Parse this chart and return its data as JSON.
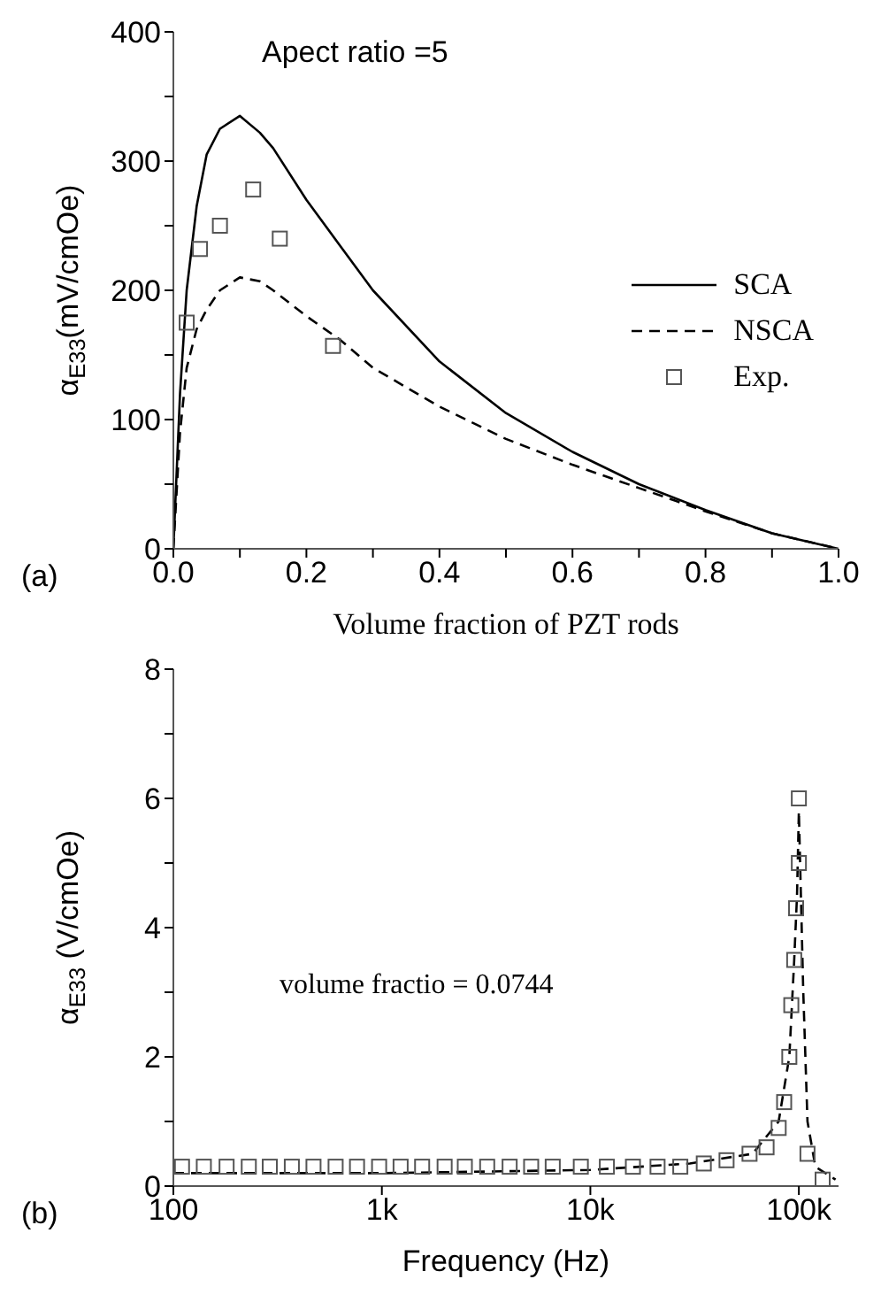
{
  "chart_data": [
    {
      "type": "line",
      "xlabel": "Volume fraction of PZT rods",
      "ylabel": "α$_{E33}$(mV/cmOe)",
      "annotations": [
        "(a)",
        "Apect ratio =5"
      ],
      "xlim": [
        0,
        1
      ],
      "ylim": [
        0,
        400
      ],
      "xticks": [
        {
          "value": 0,
          "label": "0.0"
        },
        {
          "value": 0.1,
          "label": null
        },
        {
          "value": 0.2,
          "label": "0.2"
        },
        {
          "value": 0.3,
          "label": null
        },
        {
          "value": 0.4,
          "label": "0.4"
        },
        {
          "value": 0.5,
          "label": null
        },
        {
          "value": 0.6,
          "label": "0.6"
        },
        {
          "value": 0.7,
          "label": null
        },
        {
          "value": 0.8,
          "label": "0.8"
        },
        {
          "value": 0.9,
          "label": null
        },
        {
          "value": 1,
          "label": "1.0"
        }
      ],
      "yticks": [
        0,
        {
          "value": 50,
          "label": null
        },
        100,
        {
          "value": 150,
          "label": null
        },
        200,
        {
          "value": 250,
          "label": null
        },
        300,
        {
          "value": 350,
          "label": null
        },
        400
      ],
      "legend": "right",
      "series": [
        {
          "name": "SCA",
          "color": "#000000",
          "line_style": "solid",
          "marker": "none",
          "x": [
            0,
            0.01,
            0.02,
            0.035,
            0.05,
            0.07,
            0.1,
            0.13,
            0.15,
            0.2,
            0.25,
            0.3,
            0.4,
            0.5,
            0.6,
            0.7,
            0.8,
            0.9,
            1.0
          ],
          "values": [
            0,
            120,
            200,
            265,
            305,
            325,
            335,
            322,
            310,
            270,
            235,
            200,
            145,
            105,
            75,
            50,
            30,
            12,
            0
          ]
        },
        {
          "name": "NSCA",
          "color": "#000000",
          "line_style": "dashed",
          "marker": "none",
          "x": [
            0,
            0.01,
            0.02,
            0.035,
            0.05,
            0.07,
            0.1,
            0.13,
            0.15,
            0.2,
            0.25,
            0.3,
            0.4,
            0.5,
            0.6,
            0.7,
            0.8,
            0.9,
            1.0
          ],
          "values": [
            0,
            90,
            140,
            170,
            185,
            200,
            210,
            207,
            200,
            180,
            162,
            140,
            110,
            85,
            65,
            47,
            29,
            12,
            0
          ]
        },
        {
          "name": "Exp.",
          "type": "scatter",
          "color": "#555555",
          "marker": "square",
          "x": [
            0.02,
            0.04,
            0.07,
            0.12,
            0.16,
            0.24
          ],
          "values": [
            175,
            232,
            250,
            278,
            240,
            157
          ]
        }
      ]
    },
    {
      "type": "line",
      "xlabel": "Frequency  (Hz)",
      "ylabel": "α$_{E33}$  (V/cmOe)",
      "annotations": [
        "(b)",
        "volume fractio = 0.0744"
      ],
      "log": "x",
      "xlim": [
        100,
        155000
      ],
      "ylim": [
        0,
        8
      ],
      "xticks": [
        100,
        {
          "value": 1000,
          "label": "1k"
        },
        {
          "value": 10000,
          "label": "10k"
        },
        {
          "value": 100000,
          "label": "100k"
        }
      ],
      "yticks": [
        0,
        {
          "value": 1,
          "label": null
        },
        2,
        {
          "value": 3,
          "label": null
        },
        4,
        {
          "value": 5,
          "label": null
        },
        6,
        {
          "value": 7,
          "label": null
        },
        8
      ],
      "series": [
        {
          "color": "#000000",
          "line_style": "dashed",
          "marker": "none",
          "x": [
            100,
            1000,
            10000,
            30000,
            60000,
            80000,
            90000,
            95000,
            98000,
            100000,
            105000,
            110000,
            120000,
            150000
          ],
          "values": [
            0.2,
            0.2,
            0.25,
            0.35,
            0.5,
            1.0,
            2.0,
            3.5,
            4.5,
            5.8,
            3.0,
            1.0,
            0.3,
            0.1
          ]
        },
        {
          "type": "scatter",
          "color": "#555555",
          "marker": "square",
          "x": [
            110,
            140,
            180,
            230,
            290,
            370,
            470,
            600,
            760,
            970,
            1230,
            1560,
            2000,
            2500,
            3200,
            4100,
            5200,
            6600,
            9000,
            12000,
            16000,
            21000,
            27000,
            35000,
            45000,
            58000,
            70000,
            80000,
            85000,
            90000,
            92000,
            95000,
            97000,
            100000,
            100000,
            110000,
            130000
          ],
          "values": [
            0.3,
            0.3,
            0.3,
            0.3,
            0.3,
            0.3,
            0.3,
            0.3,
            0.3,
            0.3,
            0.3,
            0.3,
            0.3,
            0.3,
            0.3,
            0.3,
            0.3,
            0.3,
            0.3,
            0.3,
            0.3,
            0.3,
            0.3,
            0.35,
            0.4,
            0.5,
            0.6,
            0.9,
            1.3,
            2.0,
            2.8,
            3.5,
            4.3,
            5.0,
            6.0,
            0.5,
            0.1
          ]
        }
      ]
    }
  ]
}
